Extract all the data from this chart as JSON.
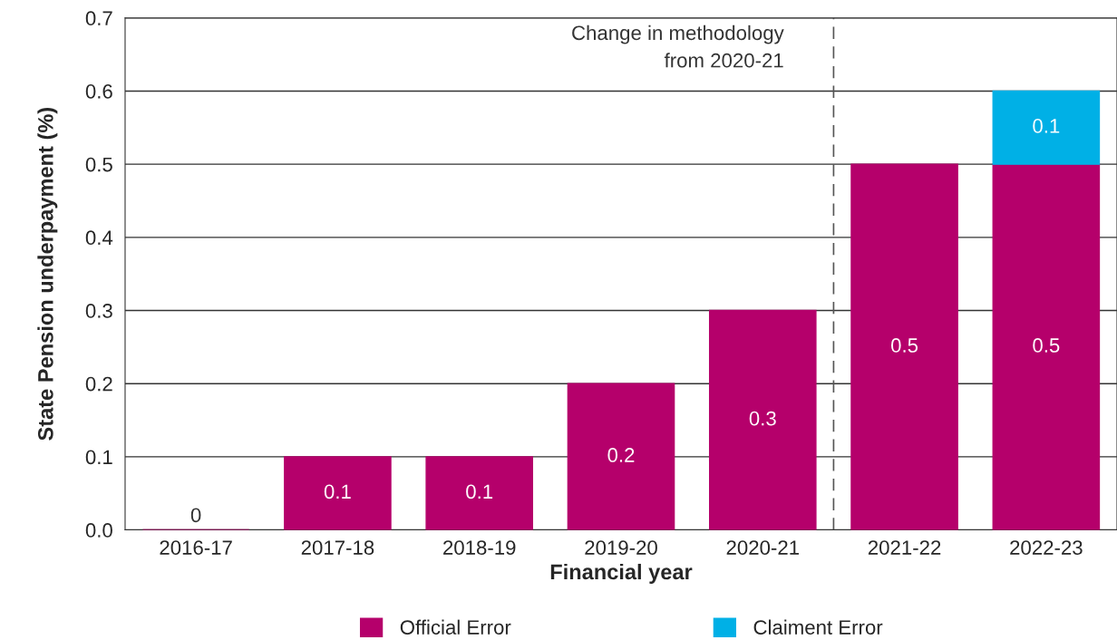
{
  "chart_data": {
    "type": "bar",
    "stacked": true,
    "xlabel": "Financial year",
    "ylabel": "State Pension underpayment (%)",
    "categories": [
      "2016-17",
      "2017-18",
      "2018-19",
      "2019-20",
      "2020-21",
      "2021-22",
      "2022-23"
    ],
    "series": [
      {
        "name": "Official Error",
        "color": "#b5006b",
        "values": [
          0,
          0.1,
          0.1,
          0.2,
          0.3,
          0.5,
          0.5
        ]
      },
      {
        "name": "Claiment Error",
        "color": "#00b0e6",
        "values": [
          null,
          null,
          null,
          null,
          null,
          null,
          0.1
        ]
      }
    ],
    "ylim": [
      0,
      0.7
    ],
    "yticks": [
      {
        "value": 0,
        "label": "0.0"
      },
      0.1,
      0.2,
      0.3,
      0.4,
      0.5,
      0.6,
      0.7
    ],
    "grid": "y",
    "legend": "bottom",
    "data_labels": true,
    "ref_lines": [
      {
        "axis": "x",
        "value": "2020-21",
        "label": "Change in methodology\nfrom 2020-21",
        "color": "#555555",
        "line_style": "dashed"
      }
    ]
  }
}
